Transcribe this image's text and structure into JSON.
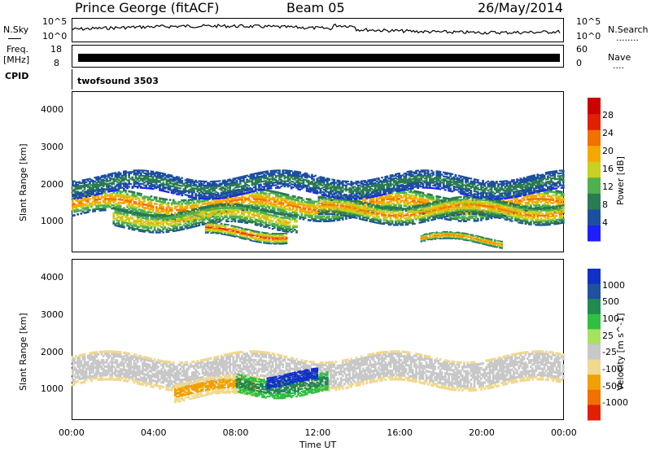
{
  "header": {
    "station": "Prince George (fitACF)",
    "beam": "Beam 05",
    "date": "26/May/2014"
  },
  "left_labels": {
    "nsky": "N.Sky",
    "freq": "Freq.",
    "freq_unit": "[MHz]",
    "cpid": "CPID"
  },
  "right_labels": {
    "nsearch": "N.Search",
    "nsearch_dots": "........",
    "nave": "Nave",
    "nave_dots": "...."
  },
  "noise_axis": {
    "left_top": "10^5",
    "left_bottom": "10^0",
    "right_top": "10^5",
    "right_bottom": "10^0"
  },
  "freq_axis": {
    "left_top": "18",
    "left_bottom": "8",
    "right_top": "60",
    "right_bottom": "0"
  },
  "cpid_text": "twofsound 3503",
  "time_axis": {
    "ticks": [
      "00:00",
      "04:00",
      "08:00",
      "12:00",
      "16:00",
      "20:00",
      "00:00"
    ],
    "label": "Time UT"
  },
  "chart_data": [
    {
      "type": "heatmap",
      "name": "power",
      "ylabel": "Slant Range [km]",
      "ylim": [
        180,
        4500
      ],
      "y_ticks": [
        1000,
        2000,
        3000,
        4000
      ],
      "colorbar_label": "Power [dB]",
      "colorbar_ticks": [
        "4",
        "8",
        "12",
        "16",
        "20",
        "24",
        "28"
      ],
      "colorbar_colors": [
        "#1e1eff",
        "#1d4fa0",
        "#2a7a52",
        "#4fb04f",
        "#c8d020",
        "#f5a800",
        "#f07000",
        "#e02000",
        "#cc0000"
      ],
      "bands": [
        {
          "t0": 0.0,
          "t1": 24.0,
          "r_center": 1450,
          "r_width": 600,
          "level": 24
        },
        {
          "t0": 2.0,
          "t1": 11.0,
          "r_center": 1100,
          "r_width": 500,
          "level": 20
        },
        {
          "t0": 6.5,
          "t1": 10.5,
          "r_center": 700,
          "r_width": 300,
          "level": 26
        },
        {
          "t0": 12.0,
          "t1": 24.0,
          "r_center": 1300,
          "r_width": 500,
          "level": 22
        },
        {
          "t0": 17.0,
          "t1": 21.0,
          "r_center": 500,
          "r_width": 200,
          "level": 24
        },
        {
          "t0": 0.0,
          "t1": 24.0,
          "r_center": 2000,
          "r_width": 500,
          "level": 8
        }
      ]
    },
    {
      "type": "heatmap",
      "name": "velocity",
      "ylabel": "Slant Range [km]",
      "ylim": [
        180,
        4500
      ],
      "y_ticks": [
        1000,
        2000,
        3000,
        4000
      ],
      "colorbar_label": "Velocity [m s^-1]",
      "colorbar_ticks": [
        "1000",
        "500",
        "100",
        "25",
        "-25",
        "-100",
        "-500",
        "-1000"
      ],
      "colorbar_colors": [
        "#1030c8",
        "#2050a0",
        "#208a50",
        "#30c040",
        "#a8e060",
        "#c8c8c8",
        "#f0d890",
        "#f0a000",
        "#f07000",
        "#e02000"
      ],
      "bands": [
        {
          "t0": 0.0,
          "t1": 24.0,
          "r_center": 1500,
          "r_width": 800,
          "level": 0
        },
        {
          "t0": 5.0,
          "t1": 9.0,
          "r_center": 1000,
          "r_width": 500,
          "level": -300
        },
        {
          "t0": 8.0,
          "t1": 12.5,
          "r_center": 1150,
          "r_width": 500,
          "level": 150
        },
        {
          "t0": 9.5,
          "t1": 12.0,
          "r_center": 1300,
          "r_width": 300,
          "level": 600
        }
      ]
    }
  ],
  "colors": {
    "frame": "#000000"
  }
}
